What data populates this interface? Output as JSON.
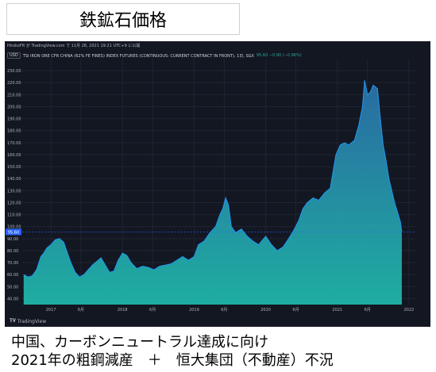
{
  "title": "鉄鉱石価格",
  "chart_header": {
    "credit": "HirokoFR が TradingView.com で 11月 28, 2021 19:21 UTC+9 に公開",
    "currency": "USD",
    "symbol": "TSI IRON ORE CFR CHINA (62% FE FINES) INDEX FUTURES (CONTINUOUS: CURRENT CONTRACT IN FRONT), 1日, SGX",
    "price": "95.60 −0.90 (−0.96%)"
  },
  "footer_logo": "TradingView",
  "caption_lines": [
    "中国、カーボンニュートラル達成に向け",
    "2021年の粗鋼減産　＋　恒大集団（不動産）不況"
  ],
  "chart_data": {
    "type": "area",
    "title": "",
    "xlabel": "",
    "ylabel": "",
    "y_axis_position": "left",
    "ylim": [
      35,
      240
    ],
    "y_ticks": [
      40,
      50,
      60,
      70,
      80,
      90,
      100,
      110,
      120,
      130,
      140,
      150,
      160,
      170,
      180,
      190,
      200,
      210,
      220,
      230
    ],
    "x_ticks": [
      {
        "x": 2017.0,
        "label": "2017"
      },
      {
        "x": 2017.42,
        "label": "6月"
      },
      {
        "x": 2018.0,
        "label": "2018"
      },
      {
        "x": 2018.42,
        "label": "6月"
      },
      {
        "x": 2019.0,
        "label": "2019"
      },
      {
        "x": 2019.42,
        "label": "6月"
      },
      {
        "x": 2020.0,
        "label": "2020"
      },
      {
        "x": 2020.42,
        "label": "6月"
      },
      {
        "x": 2021.0,
        "label": "2021"
      },
      {
        "x": 2021.42,
        "label": "6月"
      },
      {
        "x": 2022.0,
        "label": "2022"
      }
    ],
    "xlim": [
      2016.6,
      2022.1
    ],
    "last_value": 95.6,
    "last_value_label": "95.60",
    "grid": true,
    "colors": {
      "background": "#131722",
      "line": "#2196f3",
      "fill_top": "#2a6fa8",
      "fill_bottom": "#1fb5a8",
      "axis_text": "#b2b5be",
      "price_label": "#2962ff"
    },
    "series": [
      {
        "x": [
          2016.62,
          2016.68,
          2016.74,
          2016.8,
          2016.86,
          2016.9,
          2016.94,
          2017.0,
          2017.06,
          2017.12,
          2017.18,
          2017.22,
          2017.28,
          2017.34,
          2017.4,
          2017.46,
          2017.52,
          2017.58,
          2017.64,
          2017.7,
          2017.76,
          2017.82,
          2017.88,
          2017.94,
          2018.0,
          2018.06,
          2018.12,
          2018.2,
          2018.28,
          2018.36,
          2018.44,
          2018.52,
          2018.6,
          2018.68,
          2018.76,
          2018.84,
          2018.92,
          2019.0,
          2019.06,
          2019.14,
          2019.22,
          2019.3,
          2019.36,
          2019.4,
          2019.44,
          2019.48,
          2019.52,
          2019.58,
          2019.66,
          2019.74,
          2019.82,
          2019.9,
          2020.0,
          2020.08,
          2020.16,
          2020.24,
          2020.32,
          2020.4,
          2020.46,
          2020.52,
          2020.58,
          2020.66,
          2020.74,
          2020.82,
          2020.9,
          2020.98,
          2021.04,
          2021.1,
          2021.16,
          2021.24,
          2021.3,
          2021.35,
          2021.38,
          2021.42,
          2021.46,
          2021.5,
          2021.56,
          2021.6,
          2021.64,
          2021.68,
          2021.72,
          2021.76,
          2021.8,
          2021.84,
          2021.88,
          2021.9
        ],
        "values": [
          60,
          58,
          59,
          64,
          75,
          78,
          82,
          85,
          89,
          90,
          87,
          80,
          70,
          62,
          58,
          60,
          64,
          68,
          71,
          74,
          68,
          62,
          63,
          72,
          78,
          76,
          70,
          65,
          67,
          66,
          64,
          67,
          68,
          69,
          72,
          75,
          72,
          75,
          85,
          88,
          95,
          100,
          110,
          115,
          124,
          118,
          100,
          95,
          98,
          92,
          88,
          85,
          92,
          85,
          80,
          83,
          90,
          98,
          105,
          115,
          120,
          124,
          122,
          128,
          132,
          160,
          168,
          170,
          168,
          172,
          185,
          200,
          222,
          210,
          212,
          218,
          215,
          190,
          168,
          155,
          140,
          130,
          120,
          112,
          104,
          95.6
        ]
      }
    ]
  }
}
